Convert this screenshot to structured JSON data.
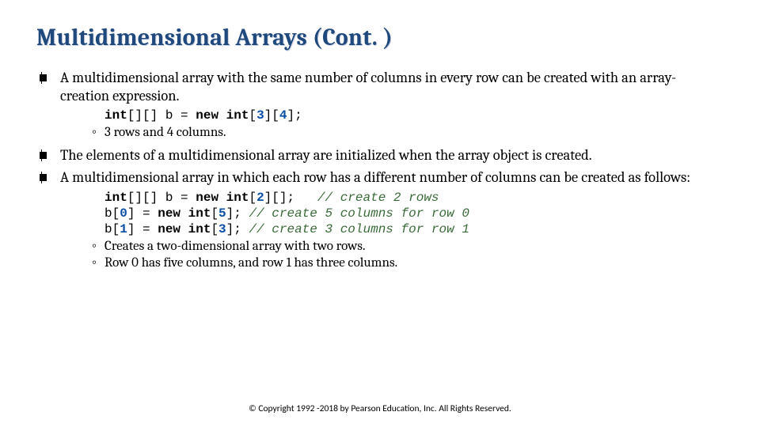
{
  "colors": {
    "title_color": "#1f497d",
    "title_shadow": "#cfd5e3",
    "background": "#ffffff",
    "body_text": "#000000",
    "code_number": "#0b4fa5",
    "code_comment": "#3a6a3a"
  },
  "typography": {
    "title_font": "Cambria",
    "title_size_pt": 30,
    "title_weight": "bold",
    "body_font": "Cambria",
    "body_size_pt": 18.5,
    "code_font": "Consolas",
    "code_size_pt": 16,
    "footer_font": "Calibri",
    "footer_size_pt": 11.5
  },
  "title": "Multidimensional Arrays (Cont. )",
  "bullets": {
    "b1": {
      "text": "A multidimensional array with the same number of columns in every row can be created with an array-creation expression.",
      "code": {
        "p1": "int",
        "p2": "[][] b = ",
        "p3": "new int",
        "p4": "[",
        "n1": "3",
        "p5": "][",
        "n2": "4",
        "p6": "];"
      },
      "sub1": "3 rows and 4 columns."
    },
    "b2": {
      "text": "The elements of a multidimensional array are initialized when the array object is created."
    },
    "b3": {
      "text": "A multidimensional array in which each row has a different number of columns can be created as follows:",
      "code": {
        "l1": {
          "p1": "int",
          "p2": "[][] b = ",
          "p3": "new int",
          "p4": "[",
          "n1": "2",
          "p5": "][];   ",
          "c1": "// create 2 rows"
        },
        "l2": {
          "p1": "b[",
          "n1": "0",
          "p2": "] = ",
          "p3": "new int",
          "p4": "[",
          "n2": "5",
          "p5": "]; ",
          "c1": "// create 5 columns for row 0"
        },
        "l3": {
          "p1": "b[",
          "n1": "1",
          "p2": "] = ",
          "p3": "new int",
          "p4": "[",
          "n2": "3",
          "p5": "]; ",
          "c1": "// create 3 columns for row 1"
        }
      },
      "sub1": "Creates a two-dimensional array with two rows.",
      "sub2": "Row 0 has five columns, and row 1 has three columns."
    }
  },
  "footer": "© Copyright 1992 -2018 by Pearson Education, Inc. All Rights Reserved."
}
